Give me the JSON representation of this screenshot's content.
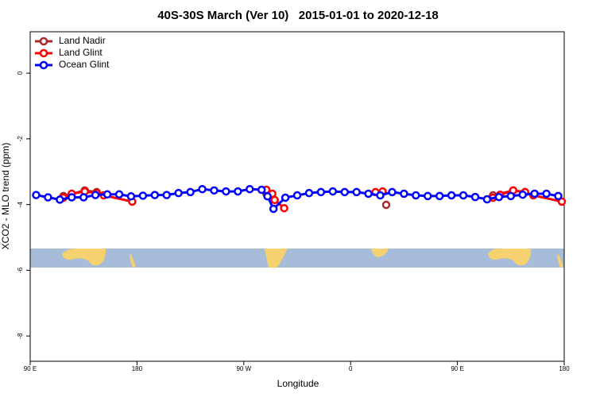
{
  "chart_data": {
    "type": "line",
    "title": "40S-30S March (Ver 10)   2015-01-01 to 2020-12-18",
    "xlabel": "Longitude",
    "ylabel": "XCO2 - MLO trend (ppm)",
    "xlim": [
      90,
      540
    ],
    "ylim": [
      -8.77,
      1.26
    ],
    "xticks": [
      {
        "value": 90,
        "label": "90 E"
      },
      180,
      {
        "value": 270,
        "label": "90 W"
      },
      {
        "value": 360,
        "label": "0"
      },
      {
        "value": 450,
        "label": "90 E"
      },
      {
        "value": 540,
        "label": "180"
      }
    ],
    "yticks": [
      0,
      -2,
      -4,
      -6,
      -8
    ],
    "legend": "top-left",
    "series": [
      {
        "name": "Land Nadir",
        "color": "#a52a2a",
        "x": [
          118,
          136,
          146,
          null,
          289,
          null,
          390,
          null,
          480,
          497,
          507
        ],
        "values": [
          -3.74,
          -3.57,
          -3.62,
          null,
          -3.67,
          null,
          -4.01,
          null,
          -3.72,
          -3.57,
          -3.62
        ]
      },
      {
        "name": "Land Glint",
        "color": "#ff0000",
        "x": [
          118,
          125,
          136,
          146,
          152,
          176,
          null,
          289,
          294,
          296,
          304,
          null,
          381,
          387,
          null,
          480,
          486,
          497,
          507,
          514,
          538
        ],
        "values": [
          -3.79,
          -3.67,
          -3.6,
          -3.65,
          -3.72,
          -3.91,
          null,
          -3.55,
          -3.67,
          -3.86,
          -4.11,
          null,
          -3.62,
          -3.6,
          null,
          -3.79,
          -3.7,
          -3.57,
          -3.62,
          -3.72,
          -3.91
        ]
      },
      {
        "name": "Ocean Glint",
        "color": "#0000ff",
        "x": [
          95,
          105,
          115,
          125,
          135,
          145,
          155,
          165,
          175,
          185,
          195,
          205,
          215,
          225,
          235,
          245,
          255,
          265,
          275,
          285,
          290,
          295,
          305,
          315,
          325,
          335,
          345,
          355,
          365,
          375,
          385,
          395,
          405,
          415,
          425,
          435,
          445,
          455,
          465,
          475,
          485,
          495,
          505,
          515,
          525,
          535
        ],
        "values": [
          -3.71,
          -3.78,
          -3.85,
          -3.78,
          -3.78,
          -3.71,
          -3.69,
          -3.69,
          -3.75,
          -3.73,
          -3.71,
          -3.71,
          -3.65,
          -3.62,
          -3.53,
          -3.57,
          -3.6,
          -3.6,
          -3.53,
          -3.55,
          -3.75,
          -4.13,
          -3.79,
          -3.72,
          -3.65,
          -3.62,
          -3.6,
          -3.62,
          -3.62,
          -3.67,
          -3.72,
          -3.62,
          -3.67,
          -3.72,
          -3.74,
          -3.74,
          -3.72,
          -3.72,
          -3.77,
          -3.84,
          -3.77,
          -3.74,
          -3.7,
          -3.67,
          -3.67,
          -3.74
        ]
      }
    ]
  }
}
